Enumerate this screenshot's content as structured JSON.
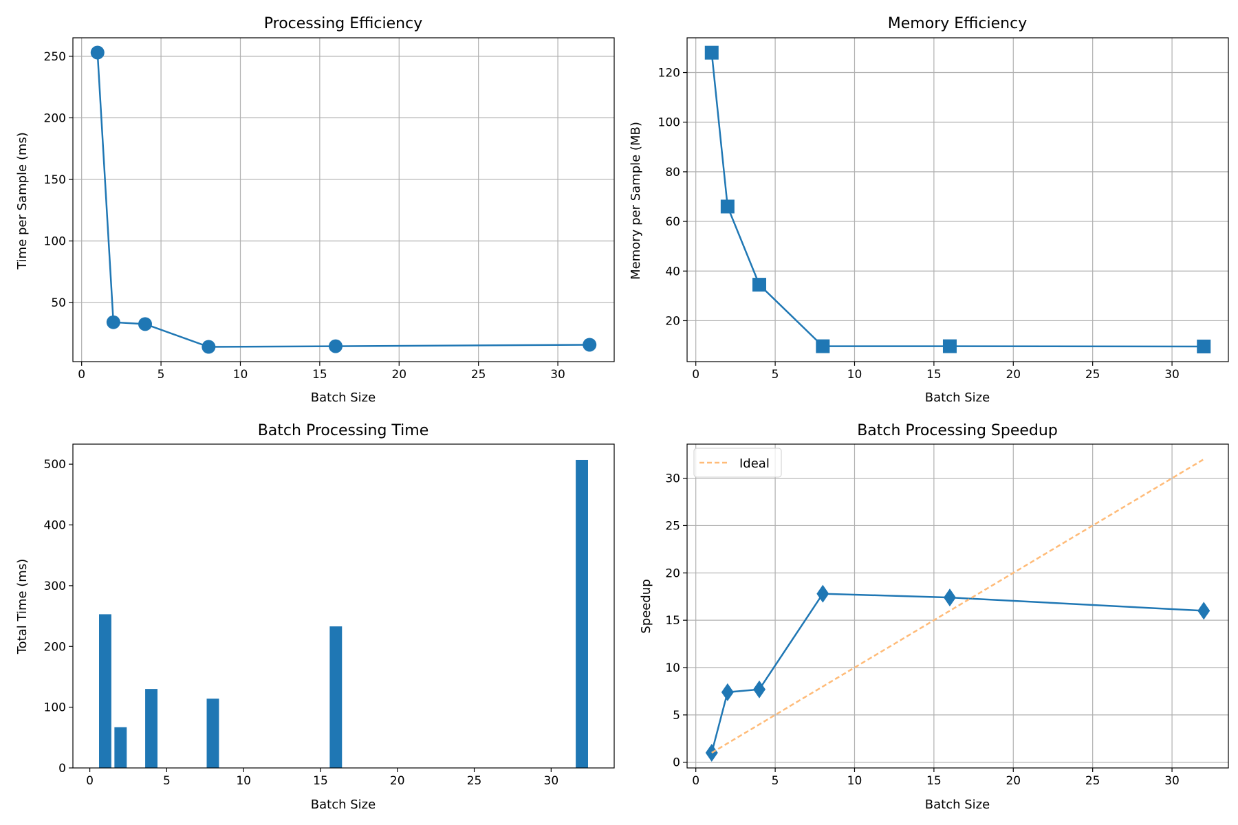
{
  "chart_data": [
    {
      "id": "efficiency",
      "type": "line",
      "title": "Processing Efficiency",
      "xlabel": "Batch Size",
      "ylabel": "Time per Sample (ms)",
      "grid": true,
      "xlim": [
        -0.55,
        33.55
      ],
      "ylim": [
        2,
        265
      ],
      "xticks": [
        0,
        5,
        10,
        15,
        20,
        25,
        30
      ],
      "yticks": [
        50,
        100,
        150,
        200,
        250
      ],
      "marker": "circle",
      "color": "#1f77b4",
      "series": [
        {
          "x": [
            1,
            2,
            4,
            8,
            16,
            32
          ],
          "y": [
            253,
            34,
            32.5,
            14,
            14.5,
            15.7
          ]
        }
      ]
    },
    {
      "id": "memory",
      "type": "line",
      "title": "Memory Efficiency",
      "xlabel": "Batch Size",
      "ylabel": "Memory per Sample (MB)",
      "grid": true,
      "xlim": [
        -0.55,
        33.55
      ],
      "ylim": [
        3.5,
        134
      ],
      "xticks": [
        0,
        5,
        10,
        15,
        20,
        25,
        30
      ],
      "yticks": [
        20,
        40,
        60,
        80,
        100,
        120
      ],
      "marker": "square",
      "color": "#1f77b4",
      "series": [
        {
          "x": [
            1,
            2,
            4,
            8,
            16,
            32
          ],
          "y": [
            128,
            66,
            34.5,
            9.7,
            9.7,
            9.6
          ]
        }
      ]
    },
    {
      "id": "batch-time",
      "type": "bar",
      "title": "Batch Processing Time",
      "xlabel": "Batch Size",
      "ylabel": "Total Time (ms)",
      "grid": false,
      "xlim": [
        -1.1,
        34.1
      ],
      "ylim": [
        0,
        533
      ],
      "xticks": [
        0,
        5,
        10,
        15,
        20,
        25,
        30
      ],
      "yticks": [
        0,
        100,
        200,
        300,
        400,
        500
      ],
      "bar_width": 0.8,
      "color": "#1f77b4",
      "series": [
        {
          "x": [
            1,
            2,
            4,
            8,
            16,
            32
          ],
          "y": [
            253,
            67,
            130,
            114,
            233,
            507
          ]
        }
      ]
    },
    {
      "id": "speedup",
      "type": "line",
      "title": "Batch Processing Speedup",
      "xlabel": "Batch Size",
      "ylabel": "Speedup",
      "grid": true,
      "xlim": [
        -0.55,
        33.55
      ],
      "ylim": [
        -0.6,
        33.6
      ],
      "xticks": [
        0,
        5,
        10,
        15,
        20,
        25,
        30
      ],
      "yticks": [
        0,
        5,
        10,
        15,
        20,
        25,
        30
      ],
      "legend": "top-left",
      "series": [
        {
          "x": [
            1,
            2,
            4,
            8,
            16,
            32
          ],
          "y": [
            1,
            7.4,
            7.7,
            17.8,
            17.4,
            16
          ],
          "marker": "diamond",
          "color": "#1f77b4",
          "style": "solid"
        },
        {
          "name": "Ideal",
          "x": [
            1,
            32
          ],
          "y": [
            1,
            32
          ],
          "marker": "none",
          "color": "#ffbb78",
          "style": "dashed"
        }
      ]
    }
  ]
}
